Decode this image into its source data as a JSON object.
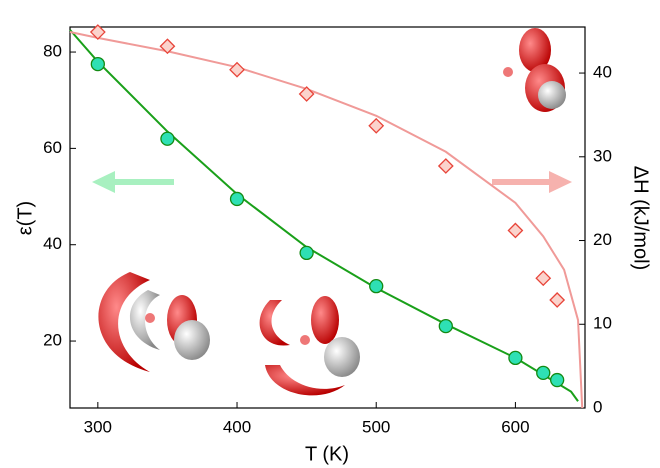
{
  "chart_data": {
    "type": "scatter",
    "x_label": "T (K)",
    "y_label": "ε(T)",
    "y2_label": "ΔH (kJ/mol)",
    "xlim": [
      280,
      650
    ],
    "xticks": [
      300,
      400,
      500,
      600
    ],
    "ylim": [
      6.1,
      85.2
    ],
    "yticks": [
      20,
      40,
      60,
      80
    ],
    "y2lim": [
      0,
      45.5
    ],
    "y2ticks": [
      0,
      10,
      20,
      30,
      40
    ],
    "series": [
      {
        "axis": "y",
        "marker": "circle",
        "color": "#2ee0b4",
        "edge": "#138a13",
        "x": [
          300,
          350,
          400,
          450,
          500,
          550,
          600,
          620,
          630
        ],
        "values": [
          77.5,
          62,
          49.5,
          38.3,
          31.4,
          23.1,
          16.5,
          13.4,
          11.9
        ]
      },
      {
        "axis": "y2",
        "marker": "diamond",
        "color": "#fbd3cc",
        "edge": "#e8453a",
        "x": [
          300,
          350,
          400,
          450,
          500,
          550,
          600,
          620,
          630
        ],
        "values": [
          44.9,
          43.2,
          40.4,
          37.5,
          33.7,
          28.9,
          21.2,
          15.5,
          12.9
        ]
      },
      {
        "axis": "y",
        "marker": "line",
        "color": "#1aa01a",
        "x": [
          280,
          300,
          350,
          400,
          450,
          500,
          550,
          600,
          640,
          645
        ],
        "values": [
          84.6,
          78,
          63.5,
          50.5,
          39.5,
          31,
          23.5,
          16.5,
          9.5,
          7.5
        ]
      },
      {
        "axis": "y2",
        "marker": "line",
        "color": "#f09a98",
        "x": [
          280,
          300,
          350,
          400,
          450,
          500,
          550,
          600,
          620,
          635,
          645,
          648
        ],
        "values": [
          44.9,
          44.2,
          42.6,
          40.7,
          38.1,
          34.9,
          30.6,
          24.5,
          20.5,
          16.5,
          10.5,
          0
        ]
      }
    ]
  }
}
